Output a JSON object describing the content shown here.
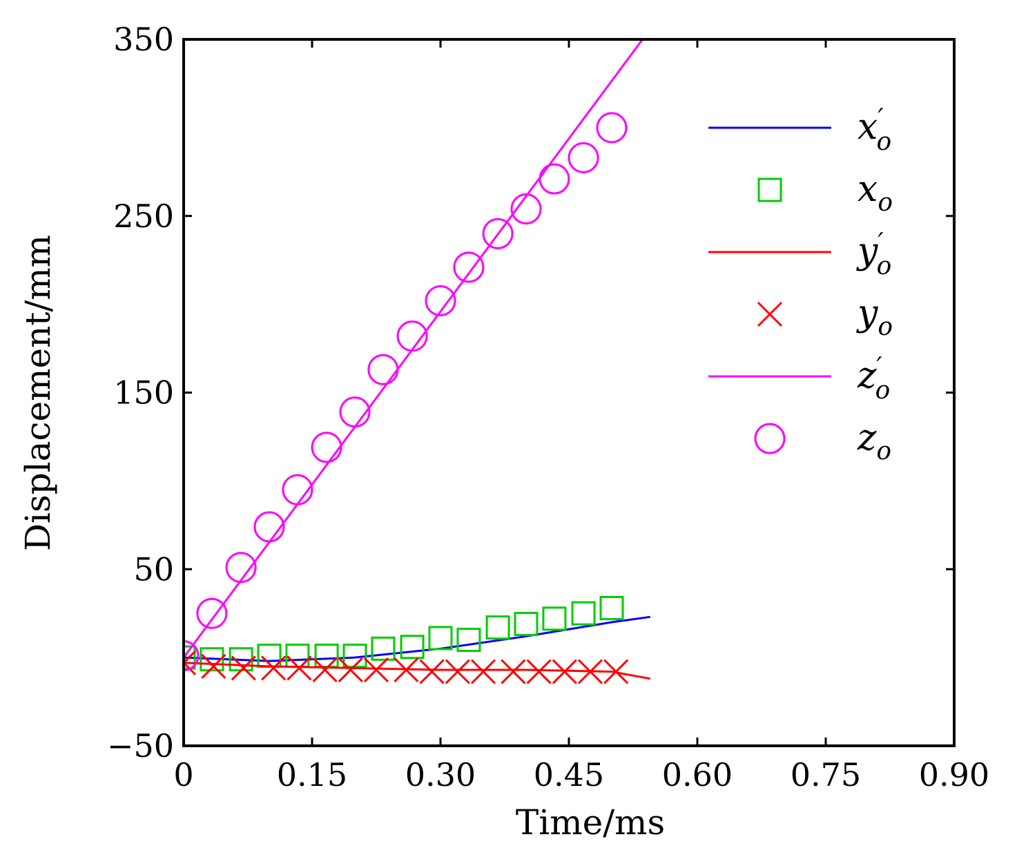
{
  "chart_data": {
    "type": "line",
    "xlabel": "Time/ms",
    "ylabel": "Displacement/mm",
    "xlim": [
      0,
      0.9
    ],
    "ylim": [
      -50,
      350
    ],
    "xticks": [
      "0",
      "0.15",
      "0.30",
      "0.45",
      "0.60",
      "0.75",
      "0.90"
    ],
    "xtick_values": [
      0,
      0.15,
      0.3,
      0.45,
      0.6,
      0.75,
      0.9
    ],
    "yticks": [
      "−50",
      "50",
      "150",
      "250",
      "350"
    ],
    "ytick_values": [
      -50,
      50,
      150,
      250,
      350
    ],
    "grid": false,
    "legend_position": "top-right",
    "series": [
      {
        "name": "x'o",
        "style": "line",
        "color": "#0000ff",
        "x": [
          0,
          0.1,
          0.2,
          0.3,
          0.4,
          0.5,
          0.545
        ],
        "y": [
          0,
          -2,
          0,
          5,
          12,
          20,
          23
        ]
      },
      {
        "name": "xo",
        "style": "marker",
        "marker": "square",
        "color": "#00cc00",
        "x": [
          0,
          0.033,
          0.067,
          0.1,
          0.133,
          0.167,
          0.2,
          0.233,
          0.267,
          0.3,
          0.333,
          0.367,
          0.4,
          0.433,
          0.467,
          0.5
        ],
        "y": [
          0,
          -1,
          -1,
          1,
          1,
          1,
          1,
          5,
          6,
          11,
          10,
          17,
          19,
          22,
          25,
          28
        ]
      },
      {
        "name": "y'o",
        "style": "line",
        "color": "#ff0000",
        "x": [
          0,
          0.1,
          0.2,
          0.3,
          0.4,
          0.5,
          0.545
        ],
        "y": [
          -3,
          -5,
          -6,
          -7,
          -7,
          -8,
          -12
        ]
      },
      {
        "name": "yo",
        "style": "marker",
        "marker": "x",
        "color": "#ff0000",
        "x": [
          0,
          0.035,
          0.07,
          0.105,
          0.135,
          0.165,
          0.195,
          0.225,
          0.26,
          0.29,
          0.32,
          0.35,
          0.385,
          0.415,
          0.445,
          0.475,
          0.505
        ],
        "y": [
          -3,
          -5,
          -6,
          -6,
          -6,
          -7,
          -7,
          -7,
          -7,
          -8,
          -8,
          -8,
          -8,
          -8,
          -8,
          -8,
          -8
        ]
      },
      {
        "name": "z'o",
        "style": "line",
        "color": "#ff00ff",
        "x": [
          0,
          0.536
        ],
        "y": [
          0,
          350
        ]
      },
      {
        "name": "zo",
        "style": "marker",
        "marker": "circle",
        "color": "#ff00ff",
        "x": [
          0,
          0.033,
          0.067,
          0.1,
          0.133,
          0.167,
          0.2,
          0.233,
          0.267,
          0.3,
          0.333,
          0.367,
          0.4,
          0.433,
          0.467,
          0.5
        ],
        "y": [
          1,
          25,
          51,
          74,
          95,
          119,
          139,
          163,
          182,
          202,
          221,
          240,
          254,
          271,
          283,
          300
        ]
      }
    ],
    "legend": [
      {
        "base": "x",
        "sub": "o",
        "prime": true
      },
      {
        "base": "x",
        "sub": "o",
        "prime": false
      },
      {
        "base": "y",
        "sub": "o",
        "prime": true
      },
      {
        "base": "y",
        "sub": "o",
        "prime": false
      },
      {
        "base": "z",
        "sub": "o",
        "prime": true
      },
      {
        "base": "z",
        "sub": "o",
        "prime": false
      }
    ]
  }
}
